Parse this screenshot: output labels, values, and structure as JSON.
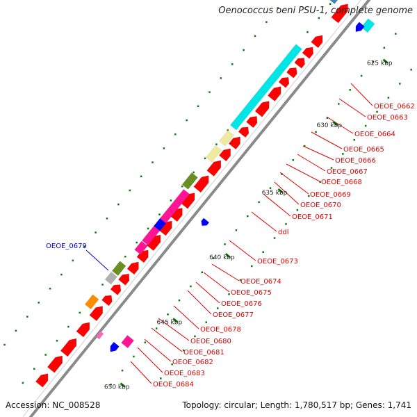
{
  "title": "Oenococcus oeni PSU-1, complete genome",
  "footer": {
    "accession": "Accession: NC_008528",
    "summary": "Topology: circular; Length: 1,780,517 bp; Genes: 1,741"
  },
  "ticks": [
    "625 kbp",
    "630 kbp",
    "635 kbp",
    "640 kbp",
    "645 kbp",
    "650 kbp"
  ],
  "gene_labels": [
    {
      "text": "OEOE_0662",
      "color": "#e00000"
    },
    {
      "text": "OEOE_0663",
      "color": "#e00000"
    },
    {
      "text": "OEOE_0664",
      "color": "#e00000"
    },
    {
      "text": "OEOE_0665",
      "color": "#e00000"
    },
    {
      "text": "OEOE_0666",
      "color": "#e00000"
    },
    {
      "text": "OEOE_0667",
      "color": "#e00000"
    },
    {
      "text": "OEOE_0668",
      "color": "#e00000"
    },
    {
      "text": "OEOE_0669",
      "color": "#e00000"
    },
    {
      "text": "OEOE_0670",
      "color": "#e00000"
    },
    {
      "text": "OEOE_0671",
      "color": "#e00000"
    },
    {
      "text": "ddl",
      "color": "#e00000"
    },
    {
      "text": "OEOE_0673",
      "color": "#e00000"
    },
    {
      "text": "OEOE_0674",
      "color": "#e00000"
    },
    {
      "text": "OEOE_0675",
      "color": "#e00000"
    },
    {
      "text": "OEOE_0676",
      "color": "#e00000"
    },
    {
      "text": "OEOE_0677",
      "color": "#e00000"
    },
    {
      "text": "OEOE_0678",
      "color": "#e00000"
    },
    {
      "text": "OEOE_0680",
      "color": "#e00000"
    },
    {
      "text": "OEOE_0681",
      "color": "#e00000"
    },
    {
      "text": "OEOE_0682",
      "color": "#e00000"
    },
    {
      "text": "OEOE_0683",
      "color": "#e00000"
    },
    {
      "text": "OEOE_0684",
      "color": "#e00000"
    },
    {
      "text": "OEOE_0679",
      "color": "#0000cc"
    }
  ],
  "colors": {
    "backbone": "#8a8a8a",
    "gene_red": "#ff0000",
    "cyan": "#00e5e5",
    "pale_yellow": "#f0eaa0",
    "olive": "#6b8e23",
    "magenta": "#ff1493",
    "blue": "#0000ff",
    "grey": "#b0b0b0",
    "orange": "#ff8c00",
    "steelblue": "#4682b4",
    "pink": "#ff69b4",
    "tick_green": "#0a7a0a"
  }
}
